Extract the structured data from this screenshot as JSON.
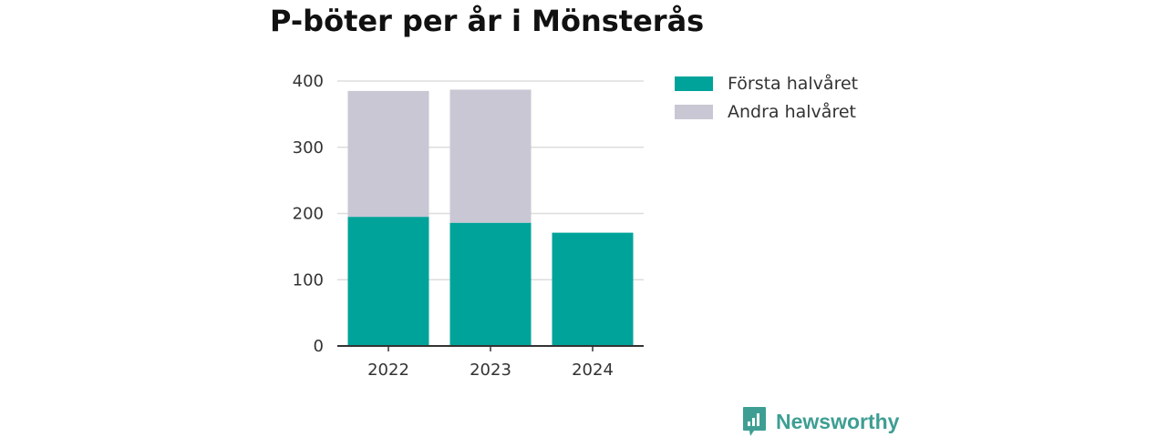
{
  "chart_data": {
    "type": "bar",
    "stacked": true,
    "title": "P-böter per år i Mönsterås",
    "xlabel": "",
    "ylabel": "",
    "categories": [
      "2022",
      "2023",
      "2024"
    ],
    "series": [
      {
        "name": "Första halvåret",
        "color": "#00a39a",
        "values": [
          195,
          186,
          171
        ]
      },
      {
        "name": "Andra halvåret",
        "color": "#c8c7d3",
        "values": [
          190,
          201,
          null
        ]
      }
    ],
    "yticks": [
      0,
      100,
      200,
      300,
      400
    ],
    "ylim": [
      0,
      400
    ],
    "grid": true,
    "legend": "right"
  },
  "brand": {
    "name": "Newsworthy",
    "icon": "newsworthy-logo-icon",
    "color": "#3e9e93"
  }
}
